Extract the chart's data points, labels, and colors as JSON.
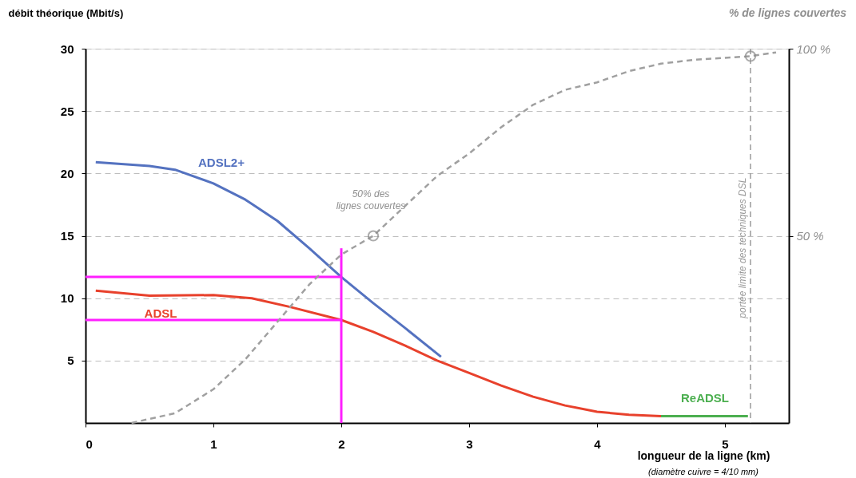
{
  "chart_data": {
    "type": "line",
    "ylabel": "débit théorique (Mbit/s)",
    "y2label": "% de lignes couvertes",
    "xlabel": "longueur de la ligne (km)",
    "annotations": [
      "50% des lignes couvertes",
      "(diamètre cuivre = 4/10 mm)"
    ],
    "xlim": [
      0,
      5.5
    ],
    "xticks": [
      0,
      1,
      2,
      3,
      4,
      5
    ],
    "ylim": [
      0,
      30
    ],
    "yticks": [
      5,
      10,
      15,
      20,
      25,
      30
    ],
    "y2lim": [
      0,
      100
    ],
    "y2ticks": [
      {
        "value": 50,
        "label": "50 %"
      },
      {
        "value": 100,
        "label": "100 %"
      }
    ],
    "grid": "y",
    "line_style": "solid",
    "ref_lines": [
      {
        "axis": "x",
        "value": 5.2,
        "label": "portée limite des techniques DSL",
        "color": "#9a9a9a",
        "line_style": "dashed"
      }
    ],
    "series": [
      {
        "name": "ADSL2+",
        "color": "#5472c0",
        "x": [
          0.08,
          0.5,
          0.7,
          1.0,
          1.25,
          1.5,
          1.75,
          2.0,
          2.25,
          2.5,
          2.78
        ],
        "values": [
          20.9,
          20.6,
          20.3,
          19.2,
          17.9,
          16.2,
          14.0,
          11.7,
          9.6,
          7.6,
          5.3
        ]
      },
      {
        "name": "ADSL",
        "color": "#e8412c",
        "x": [
          0.08,
          0.5,
          1.0,
          1.3,
          1.6,
          2.0,
          2.25,
          2.5,
          2.75,
          3.0,
          3.25,
          3.5,
          3.75,
          4.0,
          4.25,
          4.5
        ],
        "values": [
          10.6,
          10.2,
          10.25,
          10.0,
          9.3,
          8.25,
          7.3,
          6.2,
          5.0,
          4.0,
          3.0,
          2.1,
          1.4,
          0.9,
          0.65,
          0.55
        ]
      },
      {
        "name": "ReADSL",
        "color": "#4caf50",
        "x": [
          4.5,
          5.18
        ],
        "values": [
          0.55,
          0.55
        ]
      },
      {
        "axis": "y2",
        "color": "#a0a0a0",
        "line_style": "dashed",
        "x": [
          0.36,
          0.7,
          1.0,
          1.25,
          1.5,
          1.75,
          2.0,
          2.25,
          2.5,
          2.75,
          3.0,
          3.25,
          3.5,
          3.75,
          4.0,
          4.25,
          4.5,
          4.75,
          5.2,
          5.4
        ],
        "values": [
          0,
          2.6,
          9,
          17,
          27,
          37,
          45,
          50,
          58,
          66,
          72,
          79,
          85,
          89,
          91,
          94,
          96,
          97,
          98,
          99
        ]
      },
      {
        "type": "scatter",
        "axis": "y2",
        "color": "#8a8a8a",
        "marker": "circle",
        "x": [
          2.25,
          5.2
        ],
        "values": [
          50,
          98
        ]
      },
      {
        "color": "#ff1fff",
        "x": [
          2,
          2
        ],
        "values": [
          0,
          14
        ]
      },
      {
        "color": "#ff1fff",
        "x": [
          0,
          2
        ],
        "values": [
          11.7,
          11.7
        ]
      },
      {
        "color": "#ff1fff",
        "x": [
          0,
          2
        ],
        "values": [
          8.25,
          8.25
        ]
      }
    ]
  }
}
